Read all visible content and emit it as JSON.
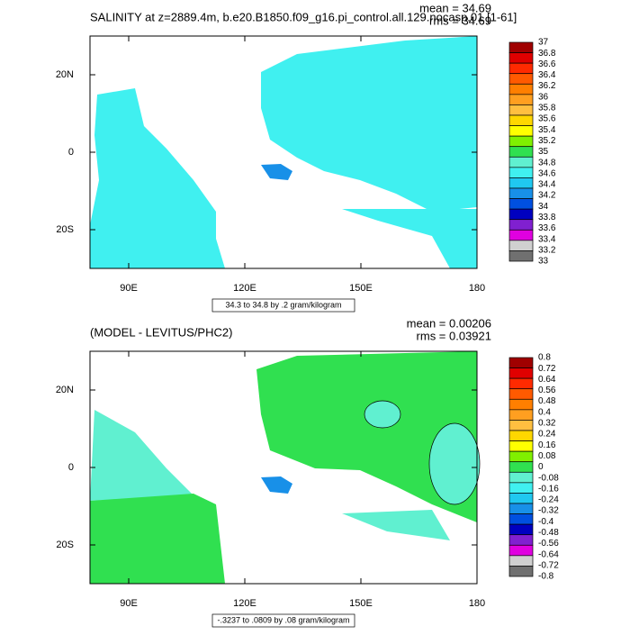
{
  "chart_data": [
    {
      "type": "map",
      "title": "SALINITY at z=2889.4m, b.e20.B1850.f09_g16.pi_control.all.129.nocasp.01 [1-61]",
      "mean_label": "mean = 34.69",
      "rms_label": "rms = 34.69",
      "footer": "34.3 to 34.8 by .2 gram/kilogram",
      "xlim": [
        80,
        180
      ],
      "xticks": [
        {
          "value": 90,
          "label": "90E"
        },
        {
          "value": 120,
          "label": "120E"
        },
        {
          "value": 150,
          "label": "150E"
        },
        {
          "value": 180,
          "label": "180"
        }
      ],
      "ylim": [
        -30,
        30
      ],
      "yticks": [
        {
          "value": 20,
          "label": "20N"
        },
        {
          "value": 0,
          "label": "0"
        },
        {
          "value": -20,
          "label": "20S"
        }
      ],
      "levels": [
        37,
        36.8,
        36.6,
        36.4,
        36.2,
        36,
        35.8,
        35.6,
        35.4,
        35.2,
        35,
        34.8,
        34.6,
        34.4,
        34.2,
        34,
        33.8,
        33.6,
        33.4,
        33.2,
        33
      ],
      "colors": [
        "#a00000",
        "#e00000",
        "#ff2a00",
        "#ff5a00",
        "#ff7f00",
        "#ff9f20",
        "#ffbf40",
        "#ffd700",
        "#ffff00",
        "#80f000",
        "#30e050",
        "#60f0d0",
        "#40f0f0",
        "#20c8f0",
        "#1890e8",
        "#0050e0",
        "#0000c0",
        "#8020d0",
        "#e000e0",
        "#d0d0d0",
        "#707070"
      ]
    },
    {
      "type": "map",
      "title": "(MODEL - LEVITUS/PHC2)",
      "mean_label": "mean = 0.00206",
      "rms_label": "rms = 0.03921",
      "footer": "-.3237 to .0809 by .08 gram/kilogram",
      "xlim": [
        80,
        180
      ],
      "xticks": [
        {
          "value": 90,
          "label": "90E"
        },
        {
          "value": 120,
          "label": "120E"
        },
        {
          "value": 150,
          "label": "150E"
        },
        {
          "value": 180,
          "label": "180"
        }
      ],
      "ylim": [
        -30,
        30
      ],
      "yticks": [
        {
          "value": 20,
          "label": "20N"
        },
        {
          "value": 0,
          "label": "0"
        },
        {
          "value": -20,
          "label": "20S"
        }
      ],
      "levels": [
        0.8,
        0.72,
        0.64,
        0.56,
        0.48,
        0.4,
        0.32,
        0.24,
        0.16,
        0.08,
        0,
        -0.08,
        -0.16,
        -0.24,
        -0.32,
        -0.4,
        -0.48,
        -0.56,
        -0.64,
        -0.72,
        -0.8
      ],
      "colors": [
        "#a00000",
        "#e00000",
        "#ff2a00",
        "#ff5a00",
        "#ff7f00",
        "#ff9f20",
        "#ffbf40",
        "#ffd700",
        "#ffff00",
        "#80f000",
        "#30e050",
        "#60f0d0",
        "#40f0f0",
        "#20c8f0",
        "#1890e8",
        "#0050e0",
        "#0000c0",
        "#8020d0",
        "#e000e0",
        "#d0d0d0",
        "#707070"
      ]
    }
  ]
}
